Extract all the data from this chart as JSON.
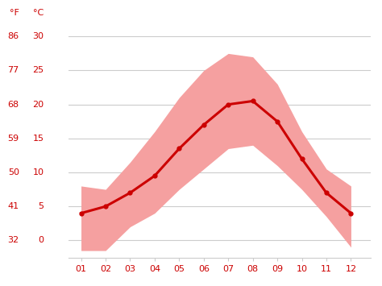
{
  "months": [
    1,
    2,
    3,
    4,
    5,
    6,
    7,
    8,
    9,
    10,
    11,
    12
  ],
  "month_labels": [
    "01",
    "02",
    "03",
    "04",
    "05",
    "06",
    "07",
    "08",
    "09",
    "10",
    "11",
    "12"
  ],
  "avg_temp_c": [
    4.0,
    5.0,
    7.0,
    9.5,
    13.5,
    17.0,
    20.0,
    20.5,
    17.5,
    12.0,
    7.0,
    4.0
  ],
  "high_temp_c": [
    8.0,
    7.5,
    11.5,
    16.0,
    21.0,
    25.0,
    27.5,
    27.0,
    23.0,
    16.0,
    10.5,
    8.0
  ],
  "low_temp_c": [
    -1.5,
    -1.5,
    2.0,
    4.0,
    7.5,
    10.5,
    13.5,
    14.0,
    11.0,
    7.5,
    3.5,
    -1.0
  ],
  "yticks_c": [
    0,
    5,
    10,
    15,
    20,
    25,
    30
  ],
  "yticks_f": [
    32,
    41,
    50,
    59,
    68,
    77,
    86
  ],
  "ylim_c": [
    -2.5,
    32.0
  ],
  "xlim": [
    0.5,
    12.8
  ],
  "band_color": "#f5a0a0",
  "line_color": "#cc0000",
  "line_width": 2.2,
  "marker": "o",
  "marker_size": 3.5,
  "bg_color": "#ffffff",
  "grid_color": "#cccccc",
  "label_color": "#cc0000",
  "label_fontsize": 8,
  "header_fontsize": 8
}
